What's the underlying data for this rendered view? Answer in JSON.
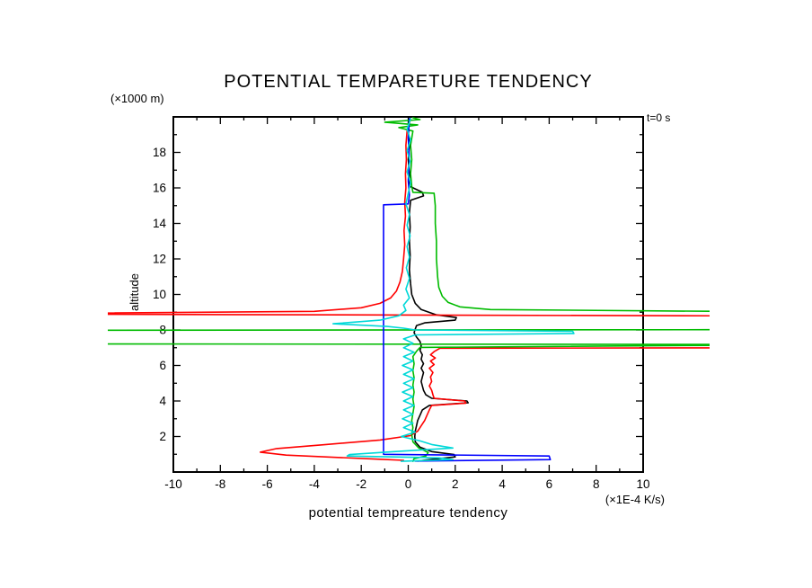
{
  "title": "POTENTIAL TEMPARETURE TENDENCY",
  "time_label": "t=0 s",
  "axes": {
    "y_unit": "(×1000 m)",
    "y_title": "altitude",
    "x_title": "potential tempreature tendency",
    "x_unit": "(×1E-4 K/s)"
  },
  "chart_data": {
    "type": "line",
    "title": "POTENTIAL TEMPARETURE TENDENCY",
    "xlabel": "potential tempreature tendency (×1E-4 K/s)",
    "ylabel": "altitude (×1000 m)",
    "annotation": "t=0 s",
    "grid": false,
    "legend": null,
    "xlim": [
      -10,
      10
    ],
    "ylim": [
      0,
      20
    ],
    "x_ticks_major": [
      -10,
      -8,
      -6,
      -4,
      -2,
      0,
      2,
      4,
      6,
      8,
      10
    ],
    "x_ticks_minor": [
      -9,
      -7,
      -5,
      -3,
      -1,
      1,
      3,
      5,
      7,
      9
    ],
    "y_ticks_major": [
      2,
      4,
      6,
      8,
      10,
      12,
      14,
      16,
      18
    ],
    "y_ticks_minor": [
      1,
      3,
      5,
      7,
      9,
      11,
      13,
      15,
      17,
      19
    ],
    "units": {
      "x": "×1E-4 K/s",
      "y": "×1000 m"
    },
    "series": [
      {
        "name": "black-profile",
        "color": "#000000",
        "points": [
          [
            0.05,
            19.9
          ],
          [
            0.0,
            19.2
          ],
          [
            0.05,
            18.4
          ],
          [
            0.0,
            17.6
          ],
          [
            0.05,
            16.8
          ],
          [
            0.05,
            16.1
          ],
          [
            0.6,
            15.75
          ],
          [
            0.65,
            15.55
          ],
          [
            0.1,
            15.3
          ],
          [
            0.05,
            14.6
          ],
          [
            0.08,
            13.8
          ],
          [
            0.05,
            13.0
          ],
          [
            0.08,
            12.2
          ],
          [
            0.05,
            11.4
          ],
          [
            0.1,
            10.6
          ],
          [
            0.15,
            10.0
          ],
          [
            0.3,
            9.5
          ],
          [
            0.55,
            9.15
          ],
          [
            1.2,
            8.85
          ],
          [
            2.05,
            8.7
          ],
          [
            2.0,
            8.55
          ],
          [
            0.7,
            8.4
          ],
          [
            0.35,
            8.25
          ],
          [
            0.3,
            8.05
          ],
          [
            0.25,
            7.85
          ],
          [
            0.35,
            7.6
          ],
          [
            0.5,
            7.35
          ],
          [
            0.55,
            7.1
          ],
          [
            0.5,
            6.85
          ],
          [
            0.6,
            6.6
          ],
          [
            0.55,
            6.35
          ],
          [
            0.65,
            6.1
          ],
          [
            0.55,
            5.85
          ],
          [
            0.65,
            5.6
          ],
          [
            0.6,
            5.35
          ],
          [
            0.55,
            5.1
          ],
          [
            0.6,
            4.85
          ],
          [
            0.65,
            4.6
          ],
          [
            0.75,
            4.35
          ],
          [
            1.0,
            4.15
          ],
          [
            2.5,
            4.0
          ],
          [
            2.55,
            3.9
          ],
          [
            0.9,
            3.75
          ],
          [
            0.6,
            3.5
          ],
          [
            0.5,
            3.2
          ],
          [
            0.4,
            2.9
          ],
          [
            0.35,
            2.6
          ],
          [
            0.3,
            2.3
          ],
          [
            0.28,
            2.0
          ],
          [
            0.3,
            1.7
          ],
          [
            0.5,
            1.4
          ],
          [
            1.0,
            1.15
          ],
          [
            1.95,
            0.98
          ],
          [
            2.0,
            0.85
          ],
          [
            0.9,
            0.7
          ],
          [
            0.4,
            0.62
          ]
        ]
      },
      {
        "name": "red-profile",
        "color": "#ff0000",
        "points": [
          [
            0.1,
            19.9
          ],
          [
            -0.05,
            19.2
          ],
          [
            -0.1,
            18.4
          ],
          [
            -0.08,
            17.6
          ],
          [
            -0.12,
            16.8
          ],
          [
            -0.1,
            16.0
          ],
          [
            -0.15,
            15.2
          ],
          [
            -0.12,
            14.4
          ],
          [
            -0.18,
            13.6
          ],
          [
            -0.15,
            12.8
          ],
          [
            -0.2,
            12.0
          ],
          [
            -0.25,
            11.3
          ],
          [
            -0.35,
            10.7
          ],
          [
            -0.5,
            10.2
          ],
          [
            -0.75,
            9.8
          ],
          [
            -1.2,
            9.5
          ],
          [
            -2.0,
            9.25
          ],
          [
            -4.0,
            9.05
          ],
          [
            -18,
            8.9
          ],
          [
            18,
            8.78
          ],
          [
            18,
            7.0
          ],
          [
            1.35,
            6.97
          ],
          [
            1.1,
            6.78
          ],
          [
            0.95,
            6.6
          ],
          [
            1.15,
            6.42
          ],
          [
            0.95,
            6.25
          ],
          [
            1.1,
            6.05
          ],
          [
            0.9,
            5.85
          ],
          [
            1.05,
            5.6
          ],
          [
            0.95,
            5.35
          ],
          [
            1.0,
            5.1
          ],
          [
            0.9,
            4.85
          ],
          [
            1.0,
            4.6
          ],
          [
            1.05,
            4.35
          ],
          [
            1.1,
            4.15
          ],
          [
            2.4,
            4.0
          ],
          [
            2.45,
            3.88
          ],
          [
            1.0,
            3.75
          ],
          [
            0.9,
            3.5
          ],
          [
            0.8,
            3.2
          ],
          [
            0.7,
            2.9
          ],
          [
            0.55,
            2.6
          ],
          [
            0.4,
            2.3
          ],
          [
            0.1,
            2.05
          ],
          [
            -1.2,
            1.8
          ],
          [
            -3.5,
            1.55
          ],
          [
            -5.6,
            1.32
          ],
          [
            -6.3,
            1.12
          ],
          [
            -5.2,
            0.95
          ],
          [
            -3.0,
            0.82
          ],
          [
            -1.2,
            0.72
          ],
          [
            -0.2,
            0.66
          ]
        ]
      },
      {
        "name": "green-profile",
        "color": "#00bb00",
        "points": [
          [
            0.2,
            19.95
          ],
          [
            0.5,
            19.85
          ],
          [
            -1.0,
            19.7
          ],
          [
            0.4,
            19.55
          ],
          [
            -0.4,
            19.4
          ],
          [
            0.2,
            19.2
          ],
          [
            0.1,
            18.4
          ],
          [
            0.15,
            17.6
          ],
          [
            0.1,
            16.8
          ],
          [
            0.15,
            16.1
          ],
          [
            0.2,
            15.75
          ],
          [
            1.1,
            15.7
          ],
          [
            1.15,
            15.0
          ],
          [
            1.15,
            14.0
          ],
          [
            1.2,
            13.0
          ],
          [
            1.2,
            12.0
          ],
          [
            1.25,
            11.0
          ],
          [
            1.3,
            10.4
          ],
          [
            1.45,
            9.9
          ],
          [
            1.7,
            9.55
          ],
          [
            2.2,
            9.3
          ],
          [
            3.5,
            9.15
          ],
          [
            18,
            9.0
          ],
          [
            18,
            8.02
          ],
          [
            -18,
            7.98
          ],
          [
            -18,
            7.22
          ],
          [
            18,
            7.18
          ],
          [
            0.5,
            7.02
          ],
          [
            0.35,
            6.8
          ],
          [
            0.2,
            6.5
          ],
          [
            0.25,
            6.1
          ],
          [
            0.2,
            5.7
          ],
          [
            0.25,
            5.3
          ],
          [
            0.2,
            4.9
          ],
          [
            0.25,
            4.5
          ],
          [
            0.2,
            4.1
          ],
          [
            0.25,
            3.7
          ],
          [
            0.2,
            3.3
          ],
          [
            0.15,
            2.9
          ],
          [
            0.2,
            2.5
          ],
          [
            0.15,
            2.1
          ],
          [
            0.2,
            1.7
          ],
          [
            0.45,
            1.35
          ],
          [
            0.85,
            1.1
          ],
          [
            0.75,
            0.9
          ],
          [
            0.25,
            0.75
          ],
          [
            0.2,
            0.6
          ]
        ]
      },
      {
        "name": "blue-profile",
        "color": "#0000ff",
        "points": [
          [
            0.05,
            19.9
          ],
          [
            0.0,
            18.8
          ],
          [
            0.05,
            17.6
          ],
          [
            0.0,
            16.4
          ],
          [
            0.05,
            15.6
          ],
          [
            0.0,
            15.1
          ],
          [
            -1.05,
            15.05
          ],
          [
            -1.05,
            1.0
          ],
          [
            6.0,
            0.9
          ],
          [
            6.05,
            0.7
          ],
          [
            0.3,
            0.62
          ]
        ]
      },
      {
        "name": "cyan-profile",
        "color": "#00d8d8",
        "points": [
          [
            0.1,
            19.9
          ],
          [
            -0.05,
            19.3
          ],
          [
            0.1,
            18.7
          ],
          [
            -0.05,
            18.1
          ],
          [
            0.08,
            17.5
          ],
          [
            -0.05,
            16.9
          ],
          [
            0.1,
            16.3
          ],
          [
            0.0,
            15.7
          ],
          [
            -0.1,
            15.1
          ],
          [
            0.05,
            14.5
          ],
          [
            -0.05,
            13.9
          ],
          [
            0.08,
            13.3
          ],
          [
            -0.05,
            12.7
          ],
          [
            0.05,
            12.1
          ],
          [
            -0.08,
            11.5
          ],
          [
            0.05,
            10.9
          ],
          [
            -0.1,
            10.3
          ],
          [
            0.05,
            9.8
          ],
          [
            -0.2,
            9.4
          ],
          [
            -0.1,
            9.1
          ],
          [
            -0.4,
            8.8
          ],
          [
            -1.2,
            8.55
          ],
          [
            -3.2,
            8.35
          ],
          [
            -0.9,
            8.2
          ],
          [
            -0.2,
            8.1
          ],
          [
            0.3,
            8.0
          ],
          [
            7.0,
            7.93
          ],
          [
            7.05,
            7.8
          ],
          [
            0.3,
            7.72
          ],
          [
            -0.2,
            7.5
          ],
          [
            0.2,
            7.25
          ],
          [
            -0.2,
            7.0
          ],
          [
            0.25,
            6.75
          ],
          [
            -0.2,
            6.5
          ],
          [
            0.2,
            6.25
          ],
          [
            -0.25,
            6.0
          ],
          [
            0.2,
            5.75
          ],
          [
            -0.2,
            5.5
          ],
          [
            0.25,
            5.25
          ],
          [
            -0.2,
            5.0
          ],
          [
            0.2,
            4.75
          ],
          [
            -0.25,
            4.5
          ],
          [
            0.2,
            4.25
          ],
          [
            -0.2,
            4.0
          ],
          [
            0.25,
            3.75
          ],
          [
            -0.2,
            3.5
          ],
          [
            0.2,
            3.25
          ],
          [
            -0.25,
            3.0
          ],
          [
            0.2,
            2.75
          ],
          [
            -0.2,
            2.5
          ],
          [
            0.3,
            2.25
          ],
          [
            -0.3,
            2.0
          ],
          [
            0.5,
            1.75
          ],
          [
            1.0,
            1.55
          ],
          [
            1.9,
            1.35
          ],
          [
            -0.6,
            1.15
          ],
          [
            -2.5,
            0.98
          ],
          [
            -2.6,
            0.9
          ],
          [
            1.3,
            0.8
          ],
          [
            1.9,
            0.7
          ],
          [
            -0.3,
            0.6
          ]
        ]
      }
    ]
  }
}
